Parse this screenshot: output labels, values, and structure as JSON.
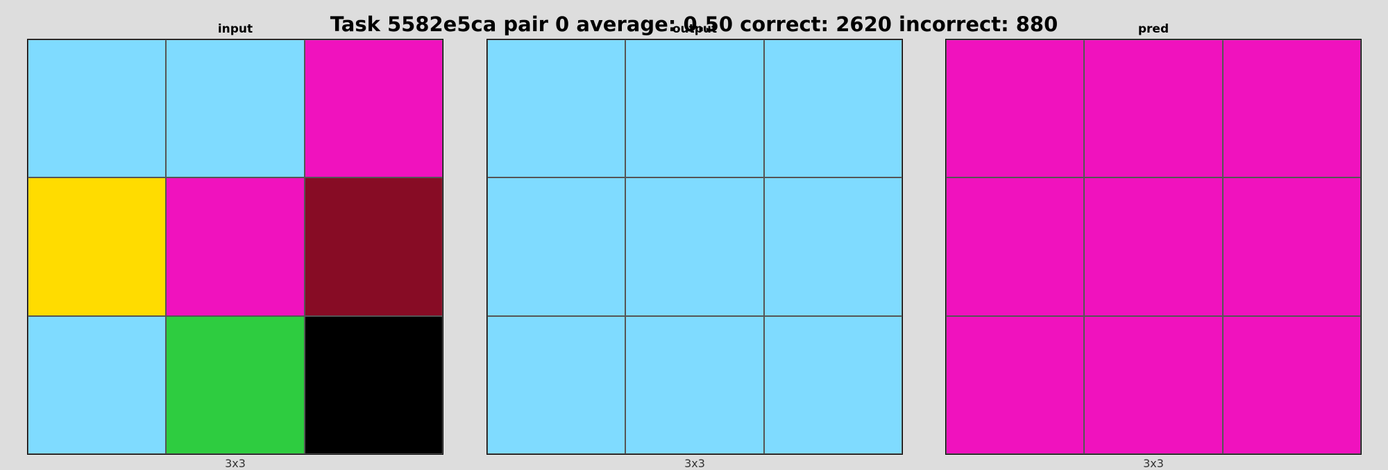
{
  "title": "Task 5582e5ca pair 0 average: 0.50 correct: 2620 incorrect: 880",
  "palette": {
    "light_blue": "#7fdbff",
    "magenta": "#f012be",
    "yellow": "#ffdc00",
    "maroon": "#870c25",
    "green": "#2ecc40",
    "black": "#000000"
  },
  "panels": [
    {
      "title": "input",
      "size_label": "3x3",
      "grid": [
        [
          "light_blue",
          "light_blue",
          "magenta"
        ],
        [
          "yellow",
          "magenta",
          "maroon"
        ],
        [
          "light_blue",
          "green",
          "black"
        ]
      ]
    },
    {
      "title": "output",
      "size_label": "3x3",
      "grid": [
        [
          "light_blue",
          "light_blue",
          "light_blue"
        ],
        [
          "light_blue",
          "light_blue",
          "light_blue"
        ],
        [
          "light_blue",
          "light_blue",
          "light_blue"
        ]
      ]
    },
    {
      "title": "pred",
      "size_label": "3x3",
      "grid": [
        [
          "magenta",
          "magenta",
          "magenta"
        ],
        [
          "magenta",
          "magenta",
          "magenta"
        ],
        [
          "magenta",
          "magenta",
          "magenta"
        ]
      ]
    }
  ]
}
